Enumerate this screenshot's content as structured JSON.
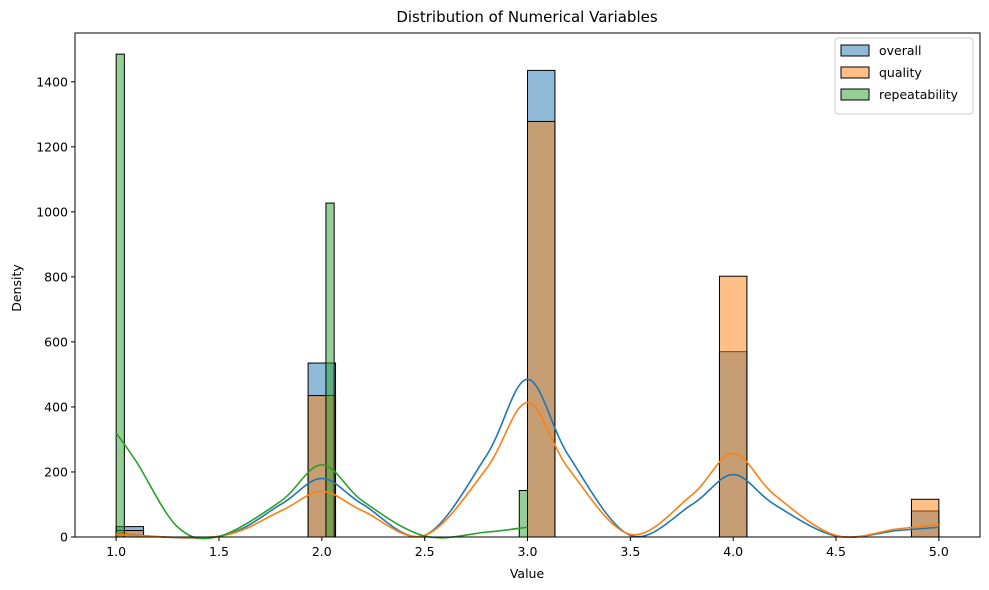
{
  "chart_data": {
    "type": "histogram_kde",
    "title": "Distribution of Numerical Variables",
    "xlabel": "Value",
    "ylabel": "Density",
    "xlim": [
      0.8,
      5.2
    ],
    "ylim": [
      0,
      1550
    ],
    "xticks": [
      1.0,
      1.5,
      2.0,
      2.5,
      3.0,
      3.5,
      4.0,
      4.5,
      5.0
    ],
    "xtick_labels": [
      "1.0",
      "1.5",
      "2.0",
      "2.5",
      "3.0",
      "3.5",
      "4.0",
      "4.5",
      "5.0"
    ],
    "yticks": [
      0,
      200,
      400,
      600,
      800,
      1000,
      1200,
      1400
    ],
    "ytick_labels": [
      "0",
      "200",
      "400",
      "600",
      "800",
      "1000",
      "1200",
      "1400"
    ],
    "legend_position": "top-right",
    "grid": false,
    "series": [
      {
        "name": "overall",
        "color": "#1f77b4",
        "bins": [
          {
            "x0": 1.0,
            "x1": 1.1333,
            "count": 32
          },
          {
            "x0": 1.9333,
            "x1": 2.0667,
            "count": 535
          },
          {
            "x0": 3.0,
            "x1": 3.1333,
            "count": 1435
          },
          {
            "x0": 3.9333,
            "x1": 4.0667,
            "count": 570
          },
          {
            "x0": 4.8667,
            "x1": 5.0,
            "count": 80
          }
        ],
        "kde": [
          [
            1.0,
            10
          ],
          [
            1.5,
            2
          ],
          [
            1.8,
            100
          ],
          [
            2.0,
            180
          ],
          [
            2.2,
            100
          ],
          [
            2.5,
            5
          ],
          [
            2.8,
            250
          ],
          [
            3.0,
            485
          ],
          [
            3.2,
            250
          ],
          [
            3.5,
            5
          ],
          [
            3.8,
            100
          ],
          [
            4.0,
            192
          ],
          [
            4.2,
            100
          ],
          [
            4.5,
            3
          ],
          [
            4.8,
            20
          ],
          [
            5.0,
            30
          ]
        ]
      },
      {
        "name": "quality",
        "color": "#ff7f0e",
        "bins": [
          {
            "x0": 1.0,
            "x1": 1.1333,
            "count": 20
          },
          {
            "x0": 1.9333,
            "x1": 2.0667,
            "count": 435
          },
          {
            "x0": 3.0,
            "x1": 3.1333,
            "count": 1278
          },
          {
            "x0": 3.9333,
            "x1": 4.0667,
            "count": 802
          },
          {
            "x0": 4.8667,
            "x1": 5.0,
            "count": 116
          }
        ],
        "kde": [
          [
            1.0,
            8
          ],
          [
            1.5,
            2
          ],
          [
            1.8,
            80
          ],
          [
            2.0,
            140
          ],
          [
            2.2,
            80
          ],
          [
            2.5,
            5
          ],
          [
            2.8,
            210
          ],
          [
            3.0,
            413
          ],
          [
            3.2,
            210
          ],
          [
            3.5,
            8
          ],
          [
            3.8,
            130
          ],
          [
            4.0,
            257
          ],
          [
            4.2,
            130
          ],
          [
            4.5,
            5
          ],
          [
            4.8,
            25
          ],
          [
            5.0,
            38
          ]
        ]
      },
      {
        "name": "repeatability",
        "color": "#2ca02c",
        "bins": [
          {
            "x0": 1.0,
            "x1": 1.04,
            "count": 1485
          },
          {
            "x0": 2.02,
            "x1": 2.06,
            "count": 1027
          },
          {
            "x0": 2.96,
            "x1": 3.0,
            "count": 143
          }
        ],
        "kde": [
          [
            1.0,
            320
          ],
          [
            1.1,
            230
          ],
          [
            1.3,
            30
          ],
          [
            1.5,
            2
          ],
          [
            1.8,
            110
          ],
          [
            2.0,
            222
          ],
          [
            2.2,
            110
          ],
          [
            2.5,
            3
          ],
          [
            2.8,
            15
          ],
          [
            3.0,
            30
          ]
        ]
      }
    ]
  }
}
